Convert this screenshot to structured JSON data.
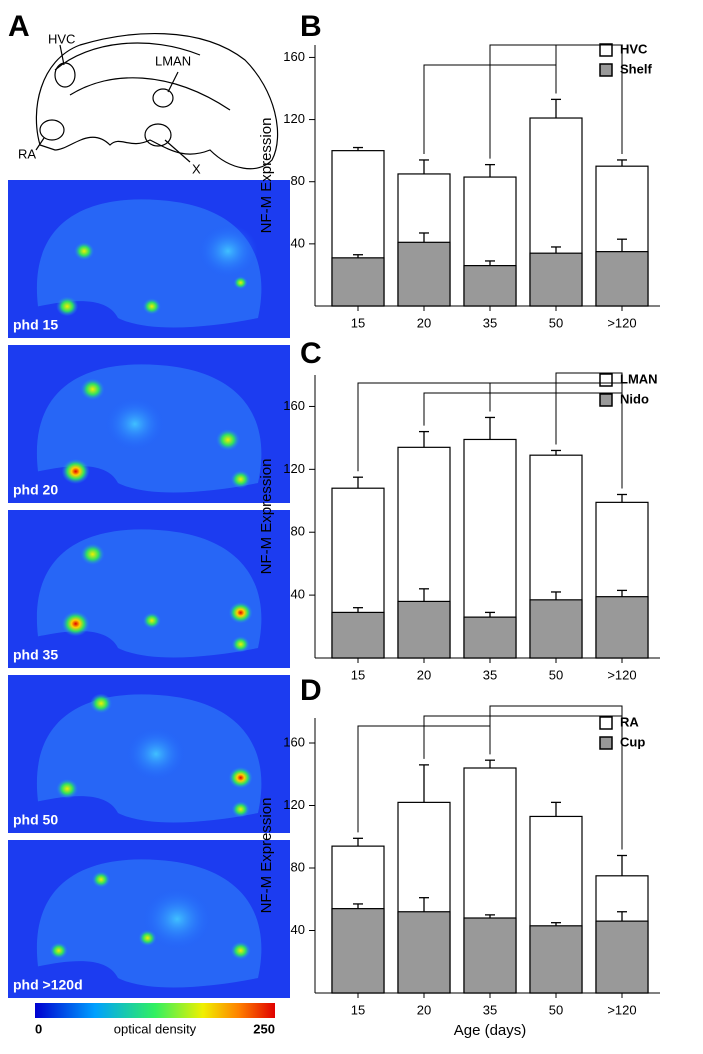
{
  "panel_labels": [
    "A",
    "B",
    "C",
    "D"
  ],
  "panel_a": {
    "schematic_labels": [
      "HVC",
      "LMAN",
      "RA",
      "X"
    ],
    "images": [
      "phd 15",
      "phd 20",
      "phd 35",
      "phd 50",
      "phd >120d"
    ],
    "colorbar": {
      "min": 0,
      "label": "optical density",
      "max": 250
    }
  },
  "chart_data": [
    {
      "type": "bar",
      "categories": [
        "15",
        "20",
        "35",
        "50",
        ">120"
      ],
      "ylabel": "NF-M Expression",
      "ylim": [
        0,
        168
      ],
      "yticks": [
        40,
        80,
        120,
        160
      ],
      "series": [
        {
          "name": "HVC",
          "color": "#ffffff",
          "values": [
            100,
            85,
            83,
            121,
            90
          ],
          "errors": [
            2,
            9,
            8,
            12,
            4
          ]
        },
        {
          "name": "Shelf",
          "color": "#999999",
          "values": [
            31,
            41,
            26,
            34,
            35
          ],
          "errors": [
            2,
            6,
            3,
            4,
            8
          ]
        }
      ]
    },
    {
      "type": "bar",
      "categories": [
        "15",
        "20",
        "35",
        "50",
        ">120"
      ],
      "ylabel": "NF-M Expression",
      "ylim": [
        0,
        180
      ],
      "yticks": [
        40,
        80,
        120,
        160
      ],
      "series": [
        {
          "name": "LMAN",
          "color": "#ffffff",
          "values": [
            108,
            134,
            139,
            129,
            99
          ],
          "errors": [
            7,
            10,
            14,
            3,
            5
          ]
        },
        {
          "name": "Nido",
          "color": "#999999",
          "values": [
            29,
            36,
            26,
            37,
            39
          ],
          "errors": [
            3,
            8,
            3,
            5,
            4
          ]
        }
      ]
    },
    {
      "type": "bar",
      "categories": [
        "15",
        "20",
        "35",
        "50",
        ">120"
      ],
      "ylabel": "NF-M Expression",
      "xlabel": "Age (days)",
      "ylim": [
        0,
        176
      ],
      "yticks": [
        40,
        80,
        120,
        160
      ],
      "series": [
        {
          "name": "RA",
          "color": "#ffffff",
          "values": [
            94,
            122,
            144,
            113,
            75
          ],
          "errors": [
            5,
            24,
            5,
            9,
            13
          ]
        },
        {
          "name": "Cup",
          "color": "#999999",
          "values": [
            54,
            52,
            48,
            43,
            46
          ],
          "errors": [
            3,
            9,
            2,
            2,
            6
          ]
        }
      ]
    }
  ]
}
